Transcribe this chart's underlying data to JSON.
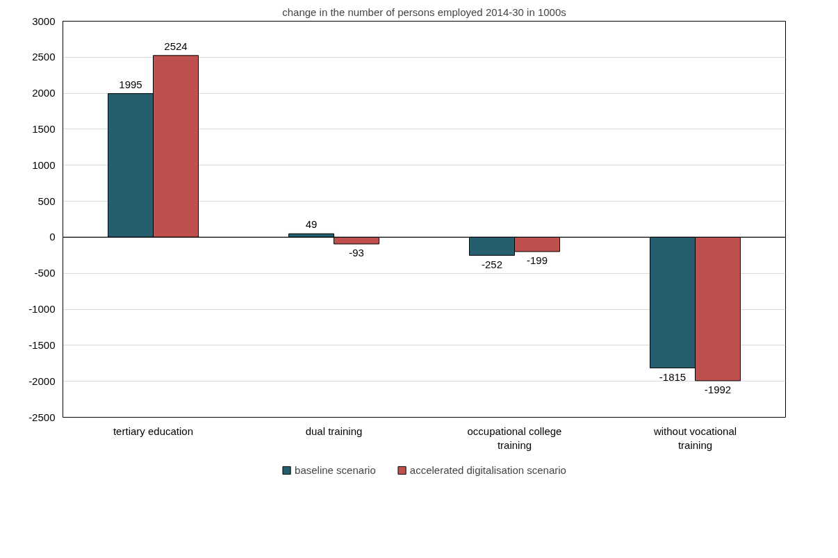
{
  "chart_data": {
    "type": "bar",
    "title": "change in the number of persons employed 2014-30 in 1000s",
    "categories": [
      "tertiary education",
      "dual training",
      "occupational college training",
      "without vocational training"
    ],
    "series": [
      {
        "name": "baseline scenario",
        "color": "#255e6e",
        "values": [
          1995,
          49,
          -252,
          -1815
        ]
      },
      {
        "name": "accelerated digitalisation scenario",
        "color": "#c0504d",
        "values": [
          2524,
          -93,
          -199,
          -1992
        ]
      }
    ],
    "ylim": [
      -2500,
      3000
    ],
    "yticks": [
      -2500,
      -2000,
      -1500,
      -1000,
      -500,
      0,
      500,
      1000,
      1500,
      2000,
      2500,
      3000
    ],
    "grid": "y",
    "legend": "bottom",
    "data_labels": true
  }
}
